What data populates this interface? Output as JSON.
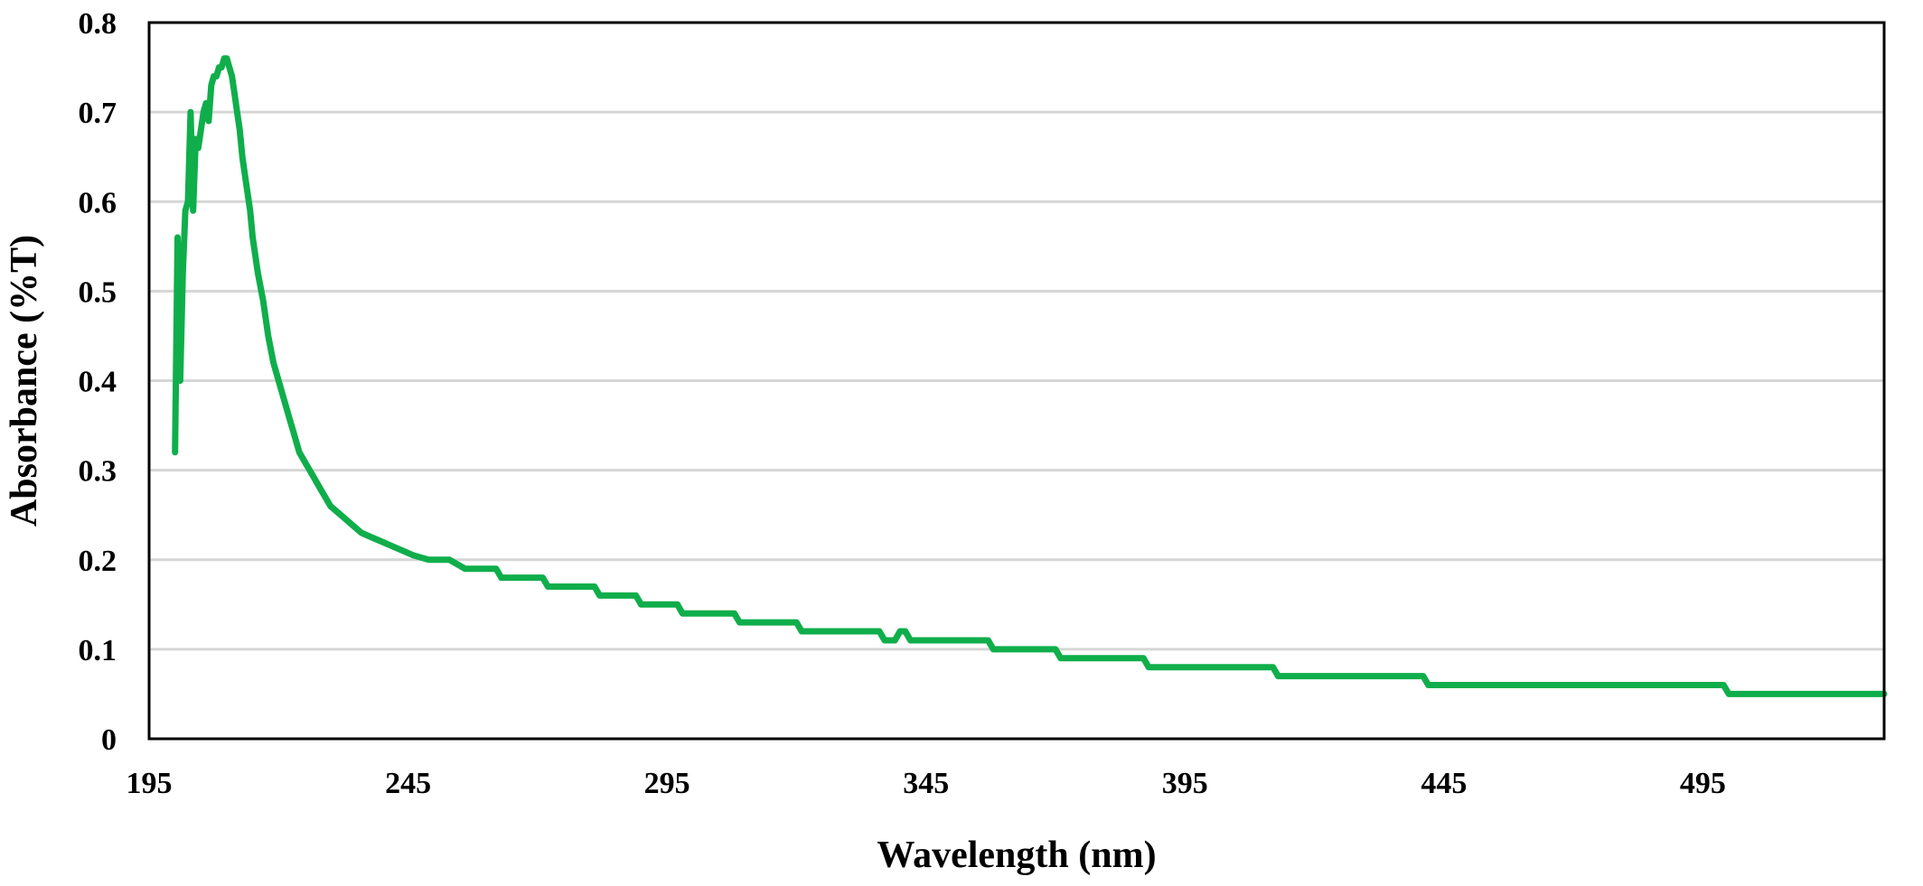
{
  "chart_data": {
    "type": "line",
    "title": "",
    "xlabel": "Wavelength (nm)",
    "ylabel": "Absorbance (%T)",
    "xlim": [
      195,
      530
    ],
    "ylim": [
      0,
      0.8
    ],
    "x_ticks": [
      195,
      245,
      295,
      345,
      395,
      445,
      495
    ],
    "x_tick_labels": [
      "195",
      "245",
      "295",
      "345",
      "395",
      "445",
      "495"
    ],
    "y_ticks": [
      0,
      0.1,
      0.2,
      0.3,
      0.4,
      0.5,
      0.6,
      0.7,
      0.8
    ],
    "y_tick_labels": [
      "0",
      "0.1",
      "0.2",
      "0.3",
      "0.4",
      "0.5",
      "0.6",
      "0.7",
      "0.8"
    ],
    "grid": "horizontal",
    "legend": "none",
    "colors": {
      "series": "#0fae4b",
      "grid": "#d6d6d6",
      "frame": "#000000"
    },
    "series": [
      {
        "x": [
          200,
          200.5,
          201,
          201.5,
          202,
          202.5,
          203,
          203.5,
          204,
          204.5,
          205,
          205.5,
          206,
          206.5,
          207,
          207.5,
          208,
          208.5,
          209,
          209.5,
          210,
          210.5,
          211,
          211.5,
          212,
          212.5,
          213,
          213.5,
          214,
          214.5,
          215,
          215.5,
          216,
          217,
          218,
          219,
          220,
          221,
          222,
          223,
          224,
          225,
          226,
          227,
          228,
          229,
          230,
          231,
          232,
          233,
          234,
          235,
          236,
          238,
          240,
          242,
          244,
          246,
          249,
          253,
          256,
          262,
          263,
          271,
          272,
          281,
          282,
          289,
          290,
          297,
          298,
          308,
          309,
          320,
          321,
          336,
          337,
          339,
          340,
          341,
          342,
          357,
          358,
          370,
          371,
          387,
          388,
          412,
          413,
          441,
          442,
          499,
          500,
          534
        ],
        "y": [
          0.32,
          0.56,
          0.4,
          0.52,
          0.59,
          0.6,
          0.7,
          0.59,
          0.67,
          0.66,
          0.68,
          0.7,
          0.71,
          0.69,
          0.73,
          0.74,
          0.74,
          0.75,
          0.75,
          0.76,
          0.76,
          0.75,
          0.74,
          0.72,
          0.7,
          0.68,
          0.65,
          0.63,
          0.61,
          0.59,
          0.56,
          0.54,
          0.52,
          0.49,
          0.45,
          0.42,
          0.4,
          0.38,
          0.36,
          0.34,
          0.32,
          0.31,
          0.3,
          0.29,
          0.28,
          0.27,
          0.26,
          0.255,
          0.25,
          0.245,
          0.24,
          0.235,
          0.23,
          0.225,
          0.22,
          0.215,
          0.21,
          0.205,
          0.2,
          0.2,
          0.19,
          0.19,
          0.18,
          0.18,
          0.17,
          0.17,
          0.16,
          0.16,
          0.15,
          0.15,
          0.14,
          0.14,
          0.13,
          0.13,
          0.12,
          0.12,
          0.11,
          0.11,
          0.12,
          0.12,
          0.11,
          0.11,
          0.1,
          0.1,
          0.09,
          0.09,
          0.08,
          0.08,
          0.07,
          0.07,
          0.06,
          0.06,
          0.05,
          0.05
        ]
      }
    ]
  }
}
